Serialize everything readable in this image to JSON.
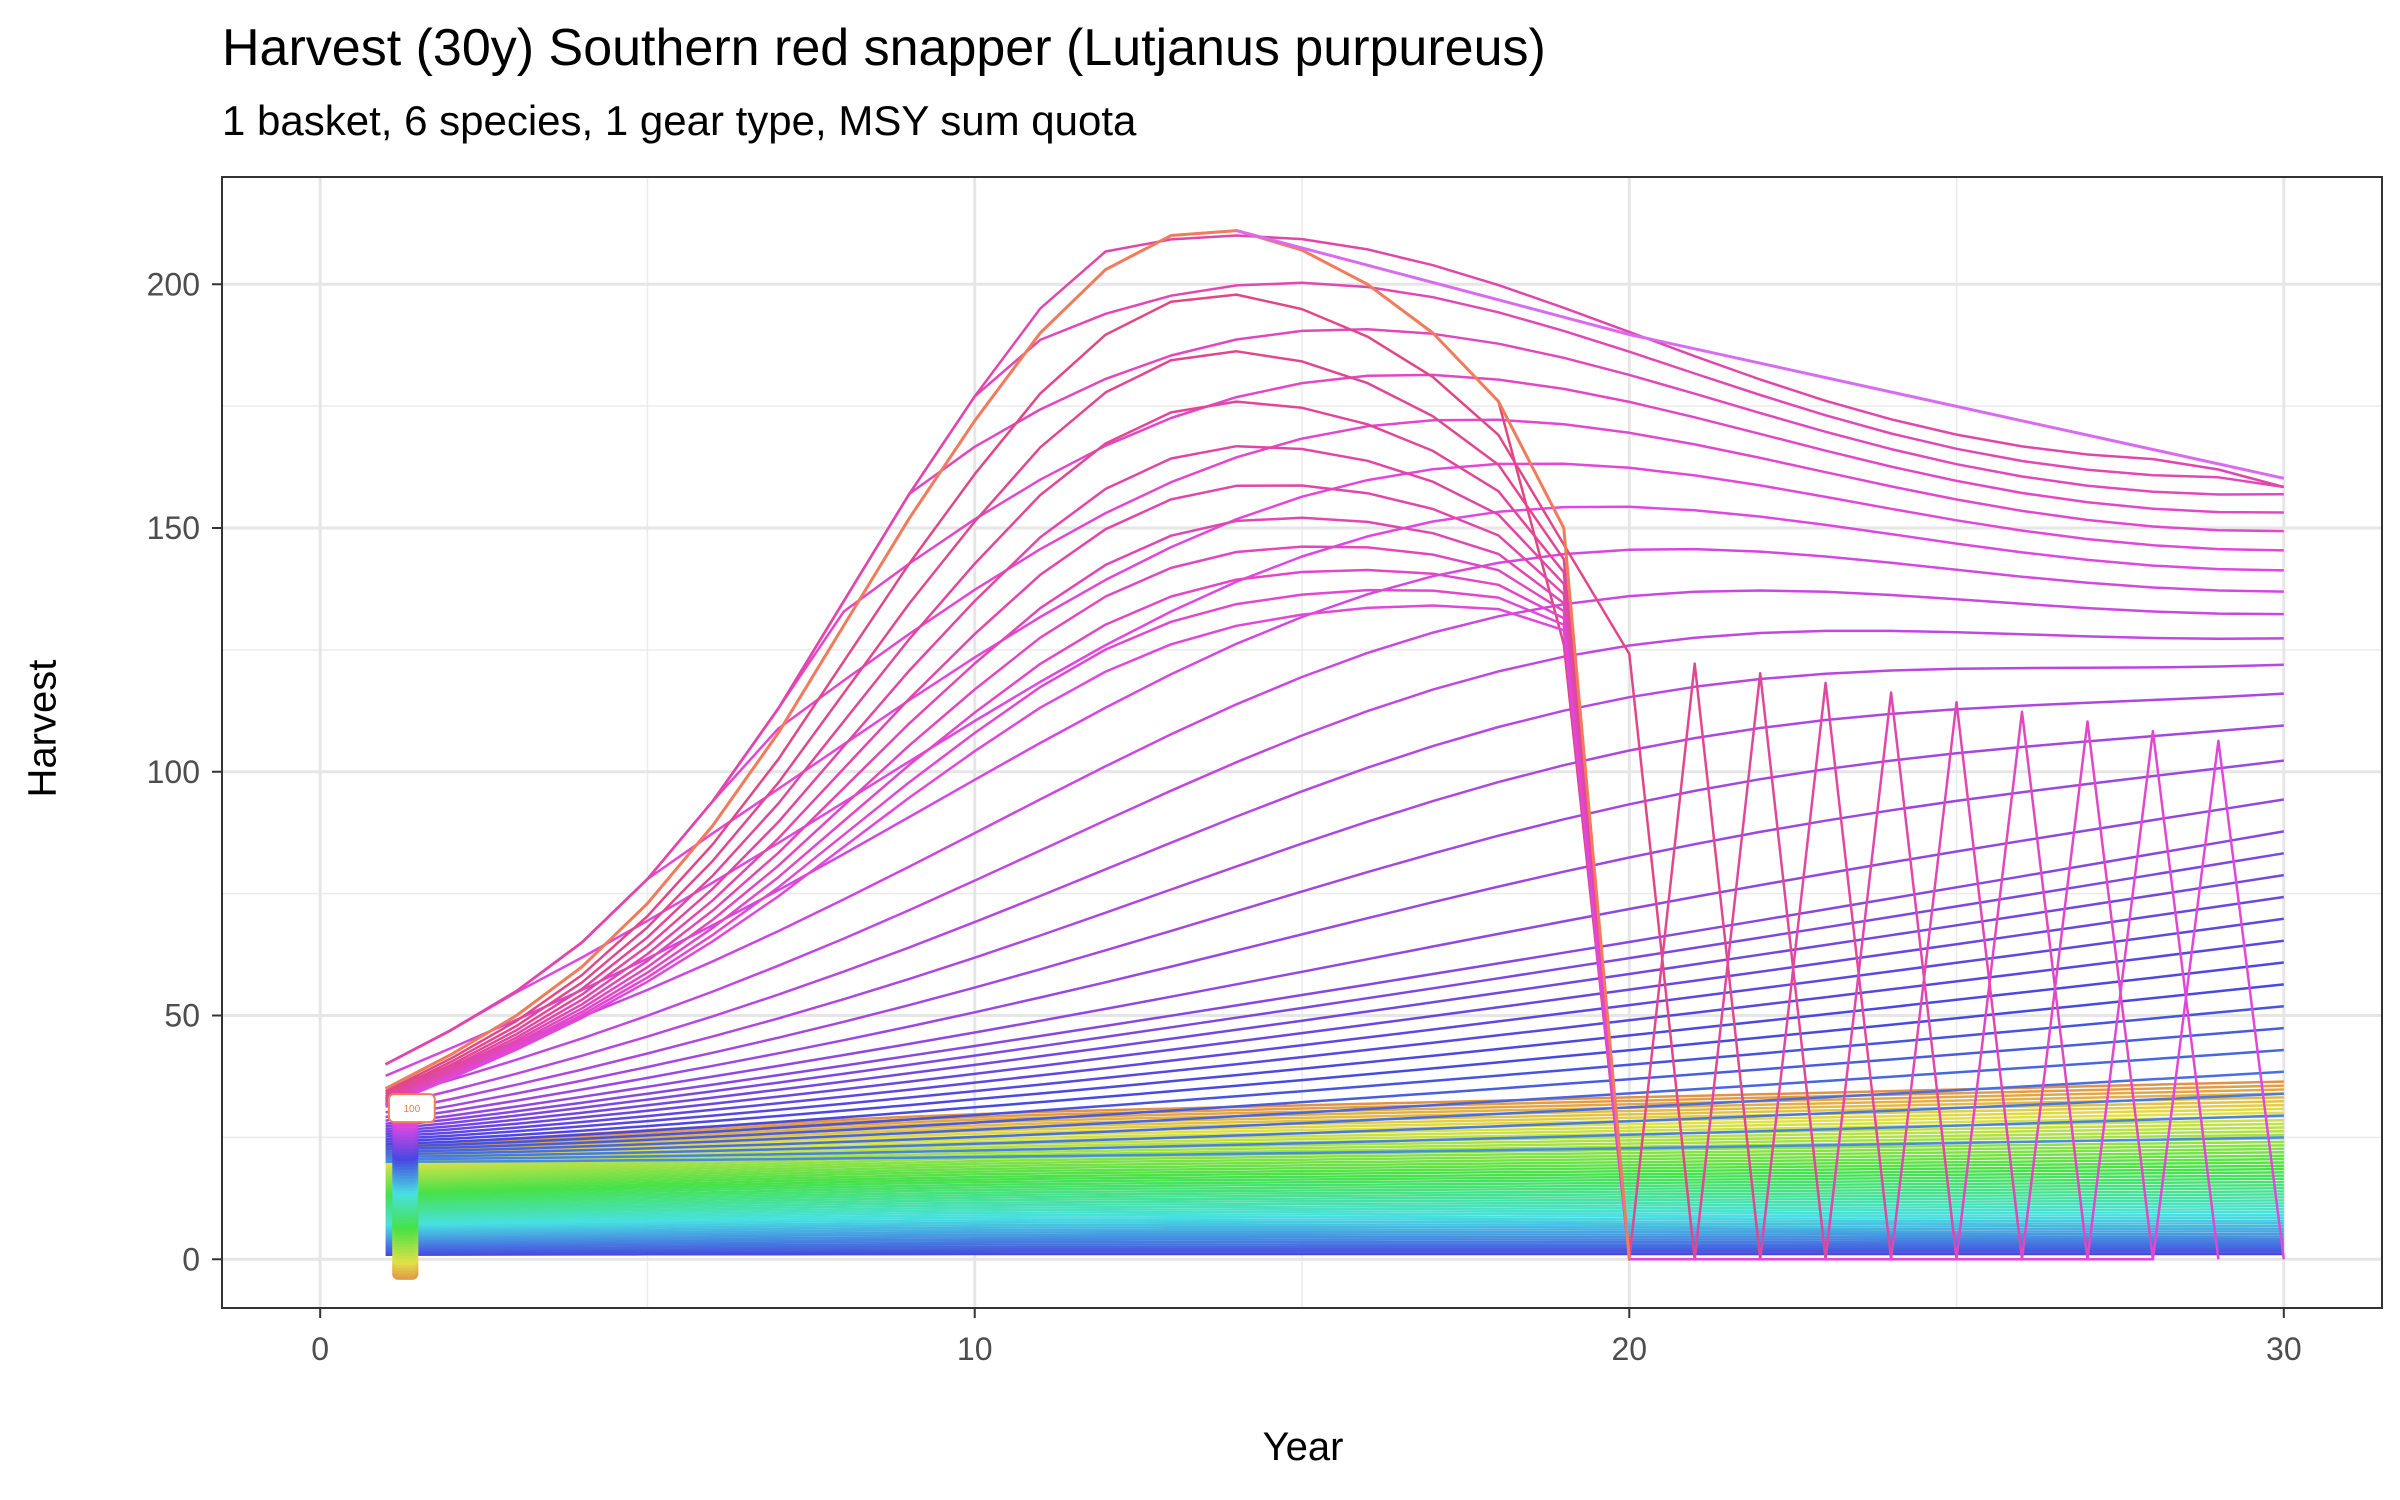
{
  "chart_data": {
    "type": "line",
    "title": "Harvest (30y) Southern red snapper (Lutjanus purpureus)",
    "subtitle": "1 basket, 6 species, 1 gear type, MSY sum quota",
    "xlabel": "Year",
    "ylabel": "Harvest",
    "xlim": [
      -1.5,
      31.5
    ],
    "ylim": [
      -10,
      222
    ],
    "x_ticks": [
      "0",
      "10",
      "20",
      "30"
    ],
    "y_ticks": [
      "0",
      "50",
      "100",
      "150",
      "200"
    ],
    "grid": true,
    "legend": "none",
    "marker_label": "100",
    "series_count": 100,
    "key_series": [
      {
        "x": [
          1,
          2,
          3,
          4,
          5,
          6,
          7,
          8,
          9,
          10,
          11,
          12,
          13,
          14,
          15,
          16,
          17,
          18,
          19,
          20
        ],
        "y": [
          35,
          42,
          50,
          60,
          73,
          89,
          108,
          130,
          152,
          172,
          190,
          203,
          210,
          211,
          207,
          200,
          190,
          176,
          150,
          0
        ]
      },
      {
        "x": [
          1,
          5,
          10,
          15,
          20,
          25,
          30
        ],
        "y": [
          30,
          60,
          105,
          140,
          165,
          172,
          154
        ]
      },
      {
        "x": [
          1,
          10,
          20,
          30
        ],
        "y": [
          20,
          40,
          90,
          134
        ]
      },
      {
        "x": [
          1,
          10,
          20,
          30
        ],
        "y": [
          15,
          17,
          20,
          25
        ]
      },
      {
        "x": [
          1,
          10,
          20,
          30
        ],
        "y": [
          12,
          14,
          15,
          13
        ]
      },
      {
        "x": [
          1,
          30
        ],
        "y": [
          2,
          2
        ]
      }
    ]
  }
}
